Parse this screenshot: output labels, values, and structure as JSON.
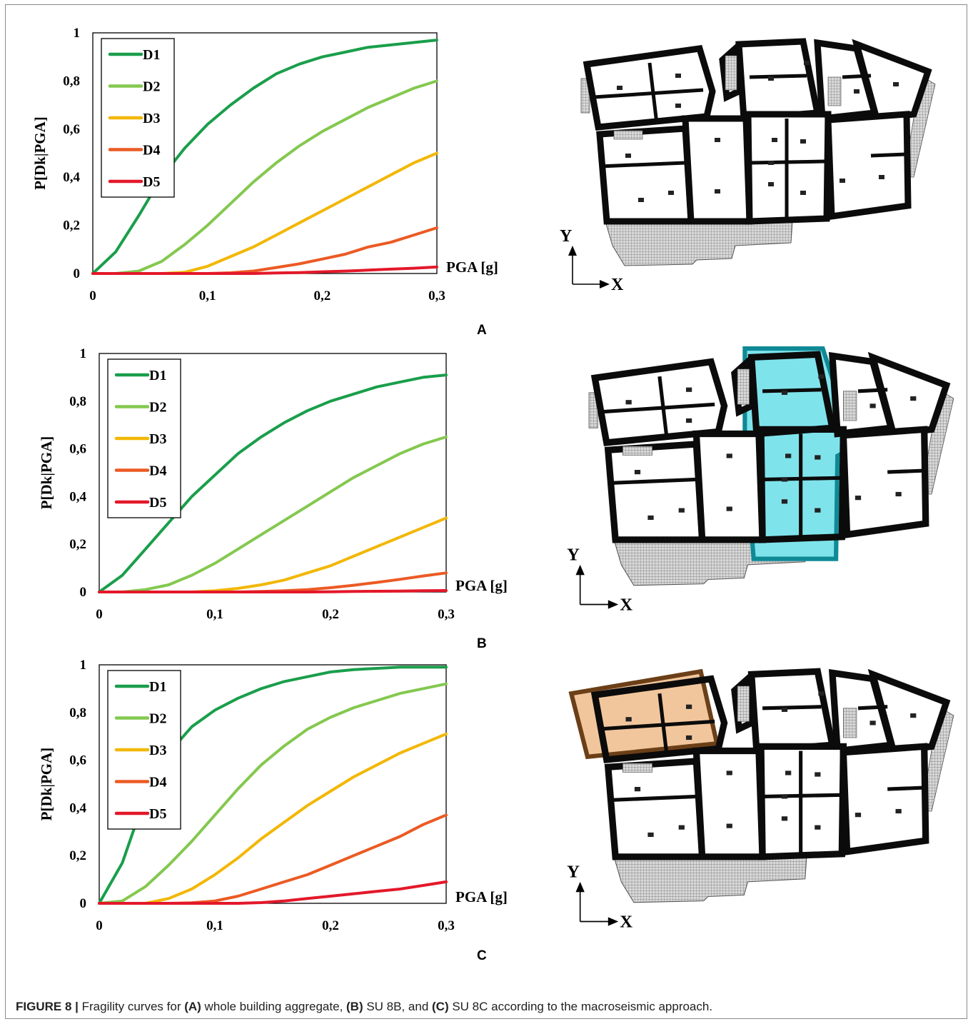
{
  "figure": {
    "label": "FIGURE 8 |",
    "caption_parts": [
      {
        "text": " Fragility curves for ",
        "bold": false
      },
      {
        "text": "(A)",
        "bold": true
      },
      {
        "text": " whole building aggregate, ",
        "bold": false
      },
      {
        "text": "(B)",
        "bold": true
      },
      {
        "text": " SU 8B, and ",
        "bold": false
      },
      {
        "text": "(C)",
        "bold": true
      },
      {
        "text": " SU 8C according to the macroseismic approach.",
        "bold": false
      }
    ]
  },
  "panels": [
    {
      "id": "A",
      "letter": "A",
      "highlight": "none"
    },
    {
      "id": "B",
      "letter": "B",
      "highlight": "su8b"
    },
    {
      "id": "C",
      "letter": "C",
      "highlight": "su8c"
    }
  ],
  "plan": {
    "axis_y": "Y",
    "axis_x": "X",
    "highlight_colors": {
      "su8b": "#7fe3ec",
      "su8b_border": "#0e8a96",
      "su8c": "#f2c69c",
      "su8c_border": "#6b3f17"
    },
    "wall_color": "#0b0b0b",
    "hatch_color": "#8c8c8c"
  },
  "chart_data": [
    {
      "type": "line",
      "panel": "A",
      "xlabel": "PGA [g]",
      "ylabel": "P[Dk|PGA]",
      "xlim": [
        0,
        0.3
      ],
      "ylim": [
        0,
        1
      ],
      "xticks": [
        "0",
        "0,1",
        "0,2",
        "0,3"
      ],
      "yticks": [
        "0",
        "0,2",
        "0,4",
        "0,6",
        "0,8",
        "1"
      ],
      "x": [
        0,
        0.02,
        0.04,
        0.06,
        0.08,
        0.1,
        0.12,
        0.14,
        0.16,
        0.18,
        0.2,
        0.22,
        0.24,
        0.26,
        0.28,
        0.3
      ],
      "series": [
        {
          "name": "D1",
          "color": "#1a9e4b",
          "values": [
            0,
            0.09,
            0.24,
            0.4,
            0.52,
            0.62,
            0.7,
            0.77,
            0.83,
            0.87,
            0.9,
            0.92,
            0.94,
            0.95,
            0.96,
            0.97
          ]
        },
        {
          "name": "D2",
          "color": "#84c84f",
          "values": [
            0,
            0.0,
            0.01,
            0.05,
            0.12,
            0.2,
            0.29,
            0.38,
            0.46,
            0.53,
            0.59,
            0.64,
            0.69,
            0.73,
            0.77,
            0.8
          ]
        },
        {
          "name": "D3",
          "color": "#f2b705",
          "values": [
            0,
            0,
            0,
            0,
            0.005,
            0.03,
            0.07,
            0.11,
            0.16,
            0.21,
            0.26,
            0.31,
            0.36,
            0.41,
            0.46,
            0.5
          ]
        },
        {
          "name": "D4",
          "color": "#ec5a24",
          "values": [
            0,
            0,
            0,
            0,
            0,
            0,
            0.003,
            0.01,
            0.025,
            0.04,
            0.06,
            0.08,
            0.11,
            0.13,
            0.16,
            0.19
          ]
        },
        {
          "name": "D5",
          "color": "#e3182a",
          "values": [
            0,
            0,
            0,
            0,
            0,
            0,
            0,
            0,
            0.002,
            0.004,
            0.007,
            0.01,
            0.014,
            0.018,
            0.022,
            0.027
          ]
        }
      ]
    },
    {
      "type": "line",
      "panel": "B",
      "xlabel": "PGA [g]",
      "ylabel": "P[Dk|PGA]",
      "xlim": [
        0,
        0.3
      ],
      "ylim": [
        0,
        1
      ],
      "xticks": [
        "0",
        "0,1",
        "0,2",
        "0,3"
      ],
      "yticks": [
        "0",
        "0,2",
        "0,4",
        "0,6",
        "0,8",
        "1"
      ],
      "x": [
        0,
        0.02,
        0.04,
        0.06,
        0.08,
        0.1,
        0.12,
        0.14,
        0.16,
        0.18,
        0.2,
        0.22,
        0.24,
        0.26,
        0.28,
        0.3
      ],
      "series": [
        {
          "name": "D1",
          "color": "#1a9e4b",
          "values": [
            0,
            0.07,
            0.18,
            0.29,
            0.4,
            0.49,
            0.58,
            0.65,
            0.71,
            0.76,
            0.8,
            0.83,
            0.86,
            0.88,
            0.9,
            0.91
          ]
        },
        {
          "name": "D2",
          "color": "#84c84f",
          "values": [
            0,
            0,
            0.01,
            0.03,
            0.07,
            0.12,
            0.18,
            0.24,
            0.3,
            0.36,
            0.42,
            0.48,
            0.53,
            0.58,
            0.62,
            0.65
          ]
        },
        {
          "name": "D3",
          "color": "#f2b705",
          "values": [
            0,
            0,
            0,
            0,
            0,
            0.005,
            0.015,
            0.03,
            0.05,
            0.08,
            0.11,
            0.15,
            0.19,
            0.23,
            0.27,
            0.31
          ]
        },
        {
          "name": "D4",
          "color": "#ec5a24",
          "values": [
            0,
            0,
            0,
            0,
            0,
            0,
            0,
            0.002,
            0.005,
            0.01,
            0.018,
            0.028,
            0.04,
            0.053,
            0.067,
            0.08
          ]
        },
        {
          "name": "D5",
          "color": "#e3182a",
          "values": [
            0,
            0,
            0,
            0,
            0,
            0,
            0,
            0,
            0,
            0,
            0.001,
            0.002,
            0.003,
            0.004,
            0.005,
            0.006
          ]
        }
      ]
    },
    {
      "type": "line",
      "panel": "C",
      "xlabel": "PGA [g]",
      "ylabel": "P[Dk|PGA]",
      "xlim": [
        0,
        0.3
      ],
      "ylim": [
        0,
        1
      ],
      "xticks": [
        "0",
        "0,1",
        "0,2",
        "0,3"
      ],
      "yticks": [
        "0",
        "0,2",
        "0,4",
        "0,6",
        "0,8",
        "1"
      ],
      "x": [
        0,
        0.02,
        0.04,
        0.06,
        0.08,
        0.1,
        0.12,
        0.14,
        0.16,
        0.18,
        0.2,
        0.22,
        0.24,
        0.26,
        0.28,
        0.3
      ],
      "series": [
        {
          "name": "D1",
          "color": "#1a9e4b",
          "values": [
            0,
            0.17,
            0.45,
            0.63,
            0.74,
            0.81,
            0.86,
            0.9,
            0.93,
            0.95,
            0.97,
            0.98,
            0.985,
            0.99,
            0.99,
            0.99
          ]
        },
        {
          "name": "D2",
          "color": "#84c84f",
          "values": [
            0,
            0.01,
            0.07,
            0.16,
            0.26,
            0.37,
            0.48,
            0.58,
            0.66,
            0.73,
            0.78,
            0.82,
            0.85,
            0.88,
            0.9,
            0.92
          ]
        },
        {
          "name": "D3",
          "color": "#f2b705",
          "values": [
            0,
            0,
            0,
            0.02,
            0.06,
            0.12,
            0.19,
            0.27,
            0.34,
            0.41,
            0.47,
            0.53,
            0.58,
            0.63,
            0.67,
            0.71
          ]
        },
        {
          "name": "D4",
          "color": "#ec5a24",
          "values": [
            0,
            0,
            0,
            0,
            0.002,
            0.01,
            0.03,
            0.06,
            0.09,
            0.12,
            0.16,
            0.2,
            0.24,
            0.28,
            0.33,
            0.37
          ]
        },
        {
          "name": "D5",
          "color": "#e3182a",
          "values": [
            0,
            0,
            0,
            0,
            0,
            0,
            0,
            0.003,
            0.01,
            0.02,
            0.03,
            0.04,
            0.05,
            0.06,
            0.075,
            0.09
          ]
        }
      ]
    }
  ]
}
